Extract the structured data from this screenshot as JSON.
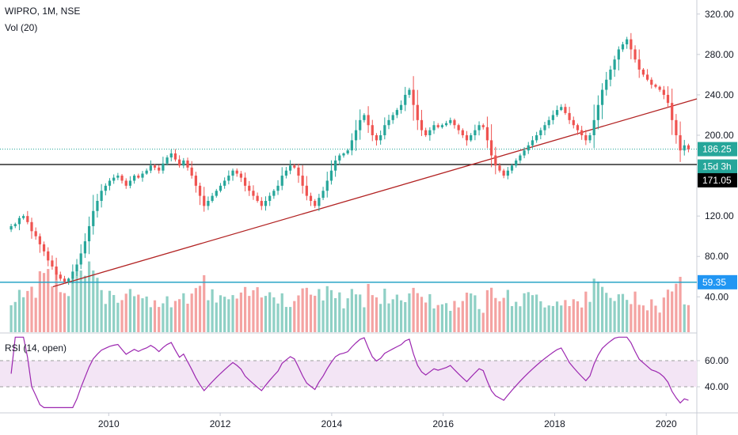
{
  "legend": {
    "symbol": "WIPRO, 1M, NSE",
    "volume": "Vol (20)",
    "rsi": "RSI (14, open)"
  },
  "colors": {
    "up": "#26a69a",
    "down": "#ef5350",
    "up_vol": "#8fd0c5",
    "down_vol": "#f4a3a2",
    "trendline": "#b22222",
    "horizontal_line": "#000000",
    "volume_level": "#2aa4c6",
    "last_price_dotted": "#26a69a",
    "rsi_line": "#9c27b0",
    "rsi_band": "#f3e5f5"
  },
  "chart_data": {
    "type": "candlestick",
    "interval": "1M",
    "price_axis": {
      "ticks": [
        "320.00",
        "280.00",
        "240.00",
        "200.00",
        "120.00",
        "80.00",
        "40.00"
      ],
      "range": [
        5,
        330
      ]
    },
    "rsi_axis": {
      "ticks": [
        "60.00",
        "40.00"
      ],
      "range": [
        20,
        80
      ],
      "band": [
        40,
        60
      ]
    },
    "time_axis": {
      "ticks": [
        "2010",
        "2012",
        "2014",
        "2016",
        "2018",
        "2020"
      ],
      "range": [
        2008.05,
        2020.55
      ]
    },
    "badges": {
      "last_price": "186.25",
      "countdown": "15d 3h",
      "horizontal_line": "171.05",
      "volume_level": "59.35"
    },
    "last_price": 186.25,
    "horizontal_line": 171.05,
    "volume_level": 59.35,
    "trendline": {
      "from": [
        2009.0,
        50
      ],
      "to": [
        2020.55,
        236
      ]
    },
    "closes": [
      110,
      112,
      118,
      120,
      114,
      105,
      100,
      92,
      85,
      76,
      70,
      62,
      58,
      55,
      58,
      65,
      72,
      83,
      95,
      110,
      125,
      135,
      145,
      150,
      155,
      158,
      160,
      155,
      150,
      155,
      160,
      158,
      162,
      165,
      170,
      168,
      165,
      172,
      178,
      182,
      176,
      170,
      175,
      168,
      160,
      150,
      140,
      130,
      135,
      140,
      145,
      150,
      155,
      160,
      165,
      162,
      158,
      150,
      145,
      140,
      135,
      130,
      135,
      140,
      145,
      150,
      160,
      165,
      170,
      168,
      160,
      150,
      140,
      135,
      130,
      138,
      145,
      155,
      165,
      175,
      180,
      182,
      185,
      195,
      205,
      215,
      220,
      210,
      200,
      195,
      200,
      210,
      215,
      220,
      225,
      230,
      240,
      245,
      230,
      215,
      205,
      200,
      205,
      210,
      208,
      210,
      212,
      215,
      210,
      205,
      200,
      195,
      200,
      205,
      210,
      208,
      195,
      180,
      170,
      165,
      160,
      165,
      170,
      175,
      180,
      185,
      190,
      195,
      200,
      205,
      210,
      215,
      220,
      225,
      228,
      222,
      215,
      210,
      205,
      200,
      195,
      200,
      215,
      230,
      245,
      255,
      265,
      275,
      285,
      290,
      295,
      285,
      275,
      265,
      260,
      255,
      250,
      248,
      245,
      240,
      232,
      215,
      200,
      185,
      190,
      186.25
    ]
  }
}
